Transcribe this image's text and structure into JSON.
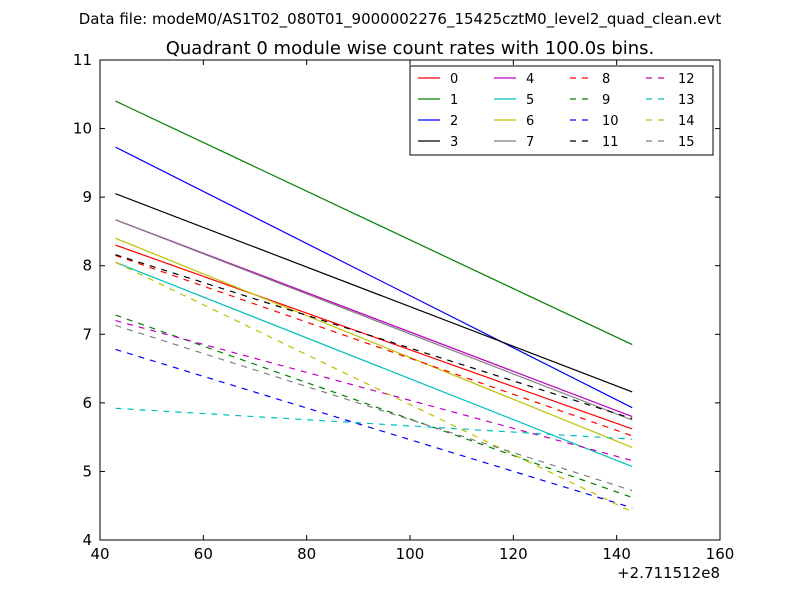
{
  "chart_data": {
    "type": "line",
    "suptitle": "Data file: modeM0/AS1T02_080T01_9000002276_15425cztM0_level2_quad_clean.evt",
    "title": "Quadrant 0 module wise count rates with 100.0s bins.",
    "xlabel": "",
    "ylabel": "",
    "x_offset_label": "+2.711512e8",
    "xlim": [
      40,
      160
    ],
    "ylim": [
      4,
      11
    ],
    "xticks": [
      "40",
      "60",
      "80",
      "100",
      "120",
      "140",
      "160"
    ],
    "yticks": [
      "4",
      "5",
      "6",
      "7",
      "8",
      "9",
      "10",
      "11"
    ],
    "grid": false,
    "legend_position": "top-right",
    "x": [
      43,
      143
    ],
    "series": [
      {
        "name": "0",
        "color": "#ff0000",
        "dash": "solid",
        "values": [
          8.3,
          5.62
        ]
      },
      {
        "name": "1",
        "color": "#008000",
        "dash": "solid",
        "values": [
          10.4,
          6.85
        ]
      },
      {
        "name": "2",
        "color": "#0000ff",
        "dash": "solid",
        "values": [
          9.73,
          5.93
        ]
      },
      {
        "name": "3",
        "color": "#000000",
        "dash": "solid",
        "values": [
          9.05,
          6.16
        ]
      },
      {
        "name": "4",
        "color": "#bf00bf",
        "dash": "solid",
        "values": [
          8.67,
          5.8
        ]
      },
      {
        "name": "5",
        "color": "#00bfbf",
        "dash": "solid",
        "values": [
          8.05,
          5.07
        ]
      },
      {
        "name": "6",
        "color": "#bfbf00",
        "dash": "solid",
        "values": [
          8.4,
          5.35
        ]
      },
      {
        "name": "7",
        "color": "#808080",
        "dash": "solid",
        "values": [
          8.67,
          5.75
        ]
      },
      {
        "name": "8",
        "color": "#ff0000",
        "dash": "dashed",
        "values": [
          8.15,
          5.52
        ]
      },
      {
        "name": "9",
        "color": "#008000",
        "dash": "dashed",
        "values": [
          7.28,
          4.62
        ]
      },
      {
        "name": "10",
        "color": "#0000ff",
        "dash": "dashed",
        "values": [
          6.78,
          4.47
        ]
      },
      {
        "name": "11",
        "color": "#000000",
        "dash": "dashed",
        "values": [
          8.16,
          5.77
        ]
      },
      {
        "name": "12",
        "color": "#bf00bf",
        "dash": "dashed",
        "values": [
          7.2,
          5.16
        ]
      },
      {
        "name": "13",
        "color": "#00bfbf",
        "dash": "dashed",
        "values": [
          5.92,
          5.47
        ]
      },
      {
        "name": "14",
        "color": "#bfbf00",
        "dash": "dashed",
        "values": [
          8.05,
          4.41
        ]
      },
      {
        "name": "15",
        "color": "#808080",
        "dash": "dashed",
        "values": [
          7.13,
          4.72
        ]
      }
    ]
  }
}
